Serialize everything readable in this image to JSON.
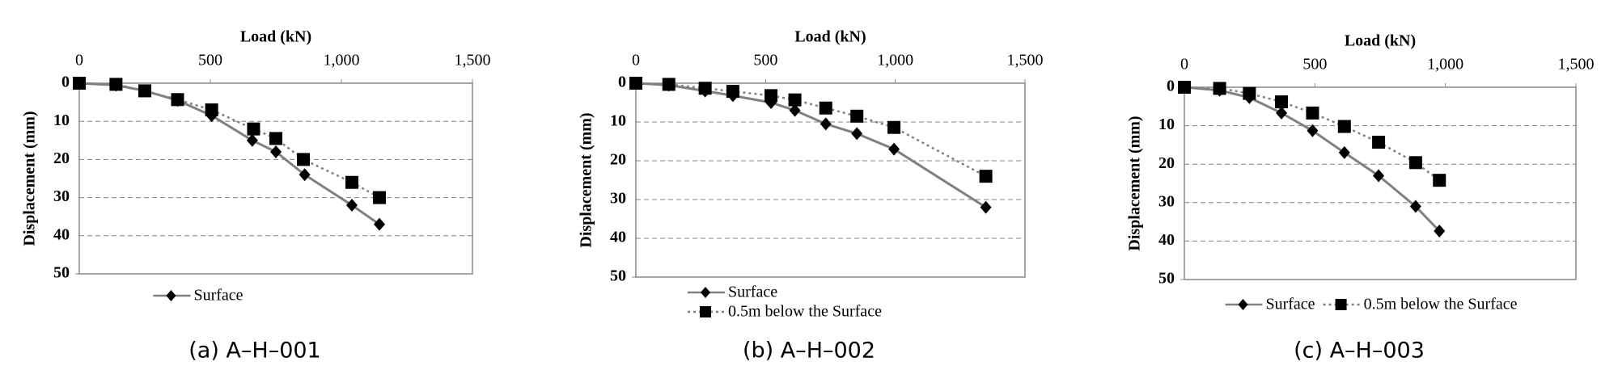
{
  "chart_data": [
    {
      "type": "line",
      "caption": "(a) A–H–001",
      "x_label": "Load (kN)",
      "y_label": "Displacement (mm)",
      "xlim": [
        0,
        1500
      ],
      "xticks": [
        0,
        500,
        {
          "value": 1000,
          "label": "1,000"
        },
        {
          "value": 1500,
          "label": "1,500"
        }
      ],
      "ylim": [
        0,
        50
      ],
      "yticks": [
        0,
        10,
        20,
        30,
        40,
        50
      ],
      "y_inverted": true,
      "x_axis_position": "top",
      "grid": true,
      "legend_layout": "horizontal",
      "series": [
        {
          "name": "Surface",
          "color": "#808080",
          "line_style": "solid",
          "marker": "diamond",
          "x": [
            0,
            140,
            250,
            375,
            505,
            660,
            750,
            860,
            1040,
            1145
          ],
          "values": [
            0,
            0.5,
            2,
            4.5,
            8.5,
            15,
            18,
            24,
            32,
            37
          ]
        },
        {
          "color": "#808080",
          "line_style": "dotted",
          "marker": "square",
          "x": [
            0,
            140,
            250,
            375,
            505,
            665,
            750,
            855,
            1040,
            1145
          ],
          "values": [
            0,
            0.3,
            2,
            4.3,
            7,
            12,
            14.5,
            20,
            26,
            30
          ]
        }
      ]
    },
    {
      "type": "line",
      "caption": "(b) A–H–002",
      "x_label": "Load (kN)",
      "y_label": "Displacement (mm)",
      "xlim": [
        0,
        1500
      ],
      "xticks": [
        0,
        500,
        {
          "value": 1000,
          "label": "1,000"
        },
        {
          "value": 1500,
          "label": "1,500"
        }
      ],
      "ylim": [
        0,
        50
      ],
      "yticks": [
        0,
        10,
        20,
        30,
        40,
        50
      ],
      "y_inverted": true,
      "x_axis_position": "top",
      "grid": true,
      "legend_layout": "vertical",
      "series": [
        {
          "name": "Surface",
          "color": "#808080",
          "line_style": "solid",
          "marker": "diamond",
          "x": [
            0,
            127,
            267,
            374,
            521,
            613,
            732,
            852,
            995,
            1349
          ],
          "values": [
            0,
            0.5,
            2,
            3.2,
            5,
            7,
            10.5,
            13,
            17,
            32
          ]
        },
        {
          "name": "0.5m below the Surface",
          "color": "#808080",
          "line_style": "dotted",
          "marker": "square",
          "x": [
            0,
            127,
            267,
            374,
            521,
            613,
            732,
            852,
            995,
            1349
          ],
          "values": [
            0,
            0.3,
            1.3,
            2.1,
            3.2,
            4.3,
            6.4,
            8.5,
            11.4,
            24
          ]
        }
      ]
    },
    {
      "type": "line",
      "caption": "(c) A–H–003",
      "x_label": "Load (kN)",
      "y_label": "Displacement (mm)",
      "xlim": [
        0,
        1500
      ],
      "xticks": [
        0,
        500,
        {
          "value": 1000,
          "label": "1,000"
        },
        {
          "value": 1500,
          "label": "1,500"
        }
      ],
      "ylim": [
        0,
        50
      ],
      "yticks": [
        0,
        10,
        20,
        30,
        40,
        50
      ],
      "y_inverted": true,
      "x_axis_position": "top",
      "grid": true,
      "legend_layout": "horizontal",
      "series": [
        {
          "name": "Surface",
          "color": "#808080",
          "line_style": "solid",
          "marker": "diamond",
          "x": [
            0,
            135,
            249,
            372,
            491,
            613,
            744,
            886,
            977
          ],
          "values": [
            0,
            0.8,
            2.7,
            6.7,
            11.3,
            17,
            23,
            31,
            37.4
          ]
        },
        {
          "name": "0.5m below the Surface",
          "color": "#808080",
          "line_style": "dotted",
          "marker": "square",
          "x": [
            0,
            135,
            249,
            372,
            491,
            613,
            744,
            886,
            977
          ],
          "values": [
            0,
            0.3,
            1.6,
            3.8,
            6.7,
            10.2,
            14.3,
            19.6,
            24.2
          ]
        }
      ]
    }
  ]
}
